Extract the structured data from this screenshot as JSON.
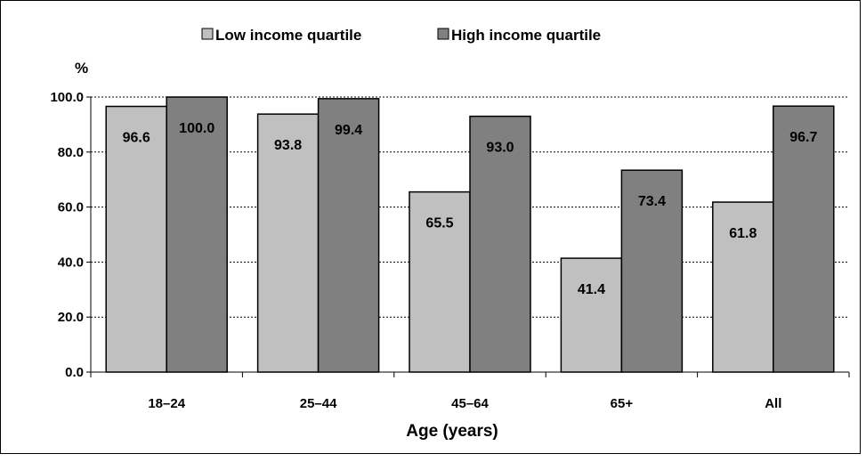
{
  "chart_data": {
    "type": "bar",
    "categories": [
      "18–24",
      "25–44",
      "45–64",
      "65+",
      "All"
    ],
    "series": [
      {
        "name": "Low income quartile",
        "values": [
          96.6,
          93.8,
          65.5,
          41.4,
          61.8
        ],
        "color": "#c0c0c0"
      },
      {
        "name": "High income quartile",
        "values": [
          100.0,
          99.4,
          93.0,
          73.4,
          96.7
        ],
        "color": "#808080"
      }
    ],
    "value_labels": {
      "Low income quartile": [
        "96.6",
        "93.8",
        "65.5",
        "41.4",
        "61.8"
      ],
      "High income quartile": [
        "100.0",
        "99.4",
        "93.0",
        "73.4",
        "96.7"
      ]
    },
    "xlabel": "Age (years)",
    "ylabel": "%",
    "ylim": [
      0,
      100
    ],
    "yticks": [
      "0.0",
      "20.0",
      "40.0",
      "60.0",
      "80.0",
      "100.0"
    ],
    "grid": true,
    "legend_position": "top"
  }
}
